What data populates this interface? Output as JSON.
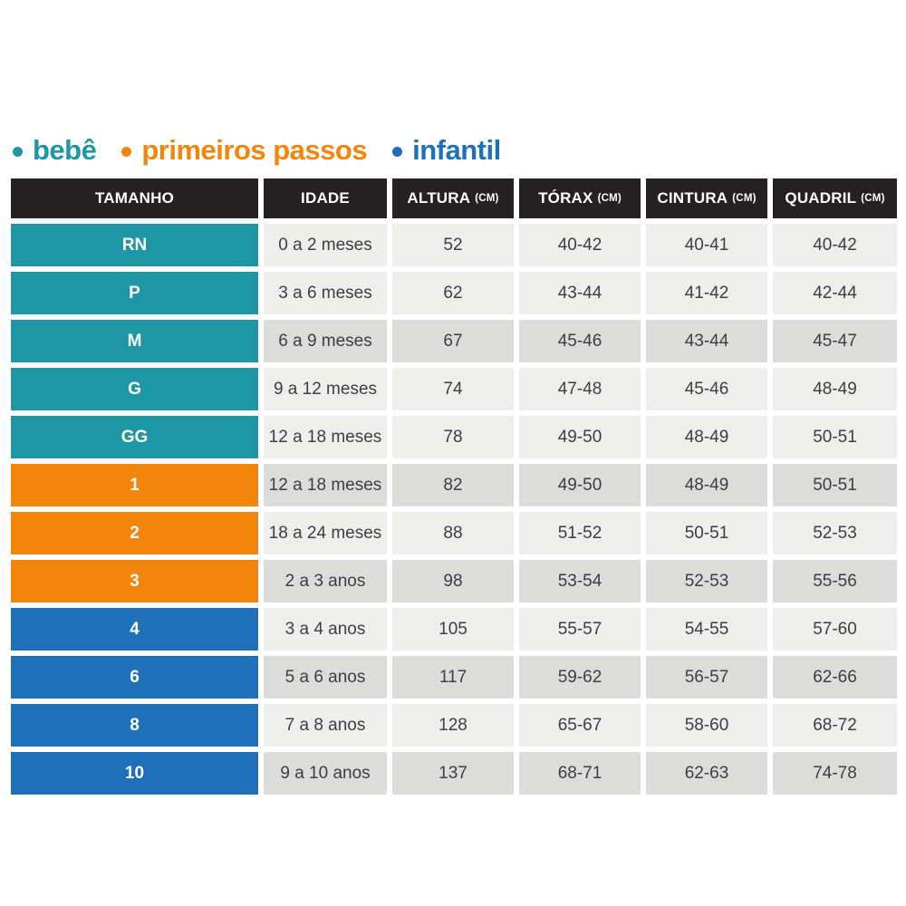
{
  "legend": {
    "items": [
      {
        "label": "bebê",
        "color": "#1E96A5",
        "category": "bebe"
      },
      {
        "label": "primeiros passos",
        "color": "#F2860D",
        "category": "primeiros_passos"
      },
      {
        "label": "infantil",
        "color": "#1E71B9",
        "category": "infantil"
      }
    ]
  },
  "header": {
    "cells": [
      {
        "label": "TAMANHO",
        "unit": ""
      },
      {
        "label": "IDADE",
        "unit": ""
      },
      {
        "label": "ALTURA",
        "unit": "(CM)"
      },
      {
        "label": "TÓRAX",
        "unit": "(CM)"
      },
      {
        "label": "CINTURA",
        "unit": "(CM)"
      },
      {
        "label": "QUADRIL",
        "unit": "(CM)"
      }
    ]
  },
  "chart_data": {
    "type": "table",
    "title": "",
    "columns": [
      "TAMANHO",
      "IDADE",
      "ALTURA (CM)",
      "TÓRAX (CM)",
      "CINTURA (CM)",
      "QUADRIL (CM)"
    ],
    "rows": [
      [
        "RN",
        "0 a 2 meses",
        "52",
        "40-42",
        "40-41",
        "40-42"
      ],
      [
        "P",
        "3 a 6 meses",
        "62",
        "43-44",
        "41-42",
        "42-44"
      ],
      [
        "M",
        "6 a 9 meses",
        "67",
        "45-46",
        "43-44",
        "45-47"
      ],
      [
        "G",
        "9 a 12 meses",
        "74",
        "47-48",
        "45-46",
        "48-49"
      ],
      [
        "GG",
        "12 a 18 meses",
        "78",
        "49-50",
        "48-49",
        "50-51"
      ],
      [
        "1",
        "12 a 18 meses",
        "82",
        "49-50",
        "48-49",
        "50-51"
      ],
      [
        "2",
        "18 a 24 meses",
        "88",
        "51-52",
        "50-51",
        "52-53"
      ],
      [
        "3",
        "2 a 3 anos",
        "98",
        "53-54",
        "52-53",
        "55-56"
      ],
      [
        "4",
        "3 a 4 anos",
        "105",
        "55-57",
        "54-55",
        "57-60"
      ],
      [
        "6",
        "5 a 6 anos",
        "117",
        "59-62",
        "56-57",
        "62-66"
      ],
      [
        "8",
        "7 a 8 anos",
        "128",
        "65-67",
        "58-60",
        "68-72"
      ],
      [
        "10",
        "9 a 10 anos",
        "137",
        "68-71",
        "62-63",
        "74-78"
      ]
    ],
    "row_categories": [
      "bebe",
      "bebe",
      "bebe",
      "bebe",
      "bebe",
      "primeiros_passos",
      "primeiros_passos",
      "primeiros_passos",
      "infantil",
      "infantil",
      "infantil",
      "infantil"
    ],
    "row_shading": [
      "light",
      "light",
      "dark",
      "light",
      "light",
      "dark",
      "light",
      "dark",
      "light",
      "dark",
      "light",
      "dark"
    ],
    "legend_entries": [
      "bebê",
      "primeiros passos",
      "infantil"
    ],
    "legend_position": "top-left"
  },
  "colors": {
    "bebe_teal": "#1E96A5",
    "primeiros_passos_orange": "#F2860D",
    "infantil_blue": "#1E71B9",
    "header_black": "#252122",
    "row_light_gray": "#EEEEED",
    "row_dark_gray": "#DCDCDB",
    "cell_text": "#3E3E3E",
    "background": "#FFFFFF"
  }
}
